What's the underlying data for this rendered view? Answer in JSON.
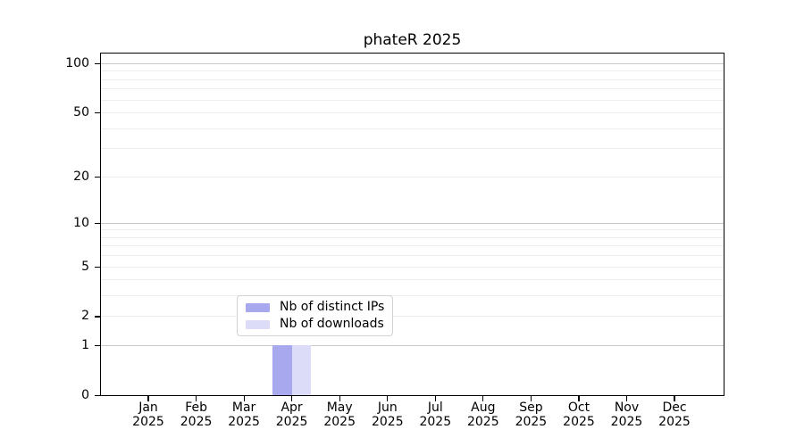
{
  "chart_data": {
    "type": "bar",
    "title": "phateR 2025",
    "x_tick_year": "2025",
    "x_categories": [
      "Jan",
      "Feb",
      "Mar",
      "Apr",
      "May",
      "Jun",
      "Jul",
      "Aug",
      "Sep",
      "Oct",
      "Nov",
      "Dec"
    ],
    "series": [
      {
        "name": "Nb of distinct IPs",
        "color": "#a8a8ef",
        "values": [
          0,
          0,
          0,
          1,
          0,
          0,
          0,
          0,
          0,
          0,
          0,
          0
        ]
      },
      {
        "name": "Nb of downloads",
        "color": "#dcdcf9",
        "values": [
          0,
          0,
          0,
          1,
          0,
          0,
          0,
          0,
          0,
          0,
          0,
          0
        ]
      }
    ],
    "y_scale": "log1p",
    "ylim": [
      0,
      100
    ],
    "y_tick_values": [
      0,
      1,
      2,
      5,
      10,
      20,
      50,
      100
    ],
    "y_gridline_values": [
      1,
      2,
      3,
      4,
      5,
      6,
      7,
      8,
      9,
      10,
      20,
      30,
      40,
      50,
      60,
      70,
      80,
      90,
      100
    ],
    "y_major_gridlines": [
      1,
      10,
      100
    ],
    "grid": true,
    "legend_position": "lower-center-inside",
    "colors": {
      "axis": "#000000",
      "grid_minor": "#ededed",
      "grid_major": "#c8c8c8",
      "background": "#ffffff",
      "legend_border": "#d2d2d2"
    }
  }
}
